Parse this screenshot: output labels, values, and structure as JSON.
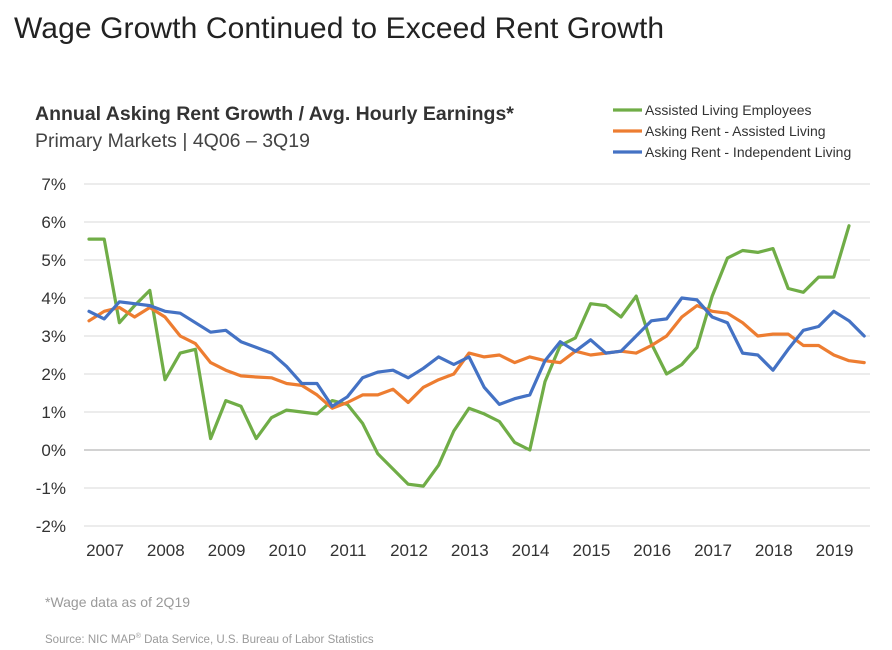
{
  "page": {
    "title": "Wage Growth Continued to Exceed Rent Growth",
    "footnote": "*Wage data as of 2Q19",
    "source_prefix": "Source: NIC MAP",
    "source_sup": "®",
    "source_suffix": " Data Service, U.S. Bureau of Labor Statistics"
  },
  "chart_data": {
    "type": "line",
    "title": "Annual Asking Rent Growth / Avg. Hourly Earnings*",
    "subtitle": "Primary Markets | 4Q06 – 3Q19",
    "xlabel": "",
    "ylabel": "",
    "ylim": [
      -2,
      7
    ],
    "yticks": [
      "-2%",
      "-1%",
      "0%",
      "1%",
      "2%",
      "3%",
      "4%",
      "5%",
      "6%",
      "7%"
    ],
    "ytick_values": [
      -2,
      -1,
      0,
      1,
      2,
      3,
      4,
      5,
      6,
      7
    ],
    "xticks": [
      "2007",
      "2008",
      "2009",
      "2010",
      "2011",
      "2012",
      "2013",
      "2014",
      "2015",
      "2016",
      "2017",
      "2018",
      "2019"
    ],
    "grid": "horizontal",
    "legend_position": "top-right",
    "x": [
      "4Q06",
      "1Q07",
      "2Q07",
      "3Q07",
      "4Q07",
      "1Q08",
      "2Q08",
      "3Q08",
      "4Q08",
      "1Q09",
      "2Q09",
      "3Q09",
      "4Q09",
      "1Q10",
      "2Q10",
      "3Q10",
      "4Q10",
      "1Q11",
      "2Q11",
      "3Q11",
      "4Q11",
      "1Q12",
      "2Q12",
      "3Q12",
      "4Q12",
      "1Q13",
      "2Q13",
      "3Q13",
      "4Q13",
      "1Q14",
      "2Q14",
      "3Q14",
      "4Q14",
      "1Q15",
      "2Q15",
      "3Q15",
      "4Q15",
      "1Q16",
      "2Q16",
      "3Q16",
      "4Q16",
      "1Q17",
      "2Q17",
      "3Q17",
      "4Q17",
      "1Q18",
      "2Q18",
      "3Q18",
      "4Q18",
      "1Q19",
      "2Q19",
      "3Q19"
    ],
    "series": [
      {
        "name": "Assisted Living Employees",
        "color": "#70AD47",
        "values": [
          5.55,
          5.55,
          3.35,
          3.8,
          4.2,
          1.85,
          2.55,
          2.65,
          0.3,
          1.3,
          1.15,
          0.3,
          0.85,
          1.05,
          1.0,
          0.95,
          1.3,
          1.2,
          0.7,
          -0.1,
          -0.5,
          -0.9,
          -0.95,
          -0.4,
          0.5,
          1.1,
          0.95,
          0.75,
          0.2,
          0.0,
          1.8,
          2.75,
          2.95,
          3.85,
          3.8,
          3.5,
          4.05,
          2.8,
          2.0,
          2.25,
          2.7,
          4.05,
          5.05,
          5.25,
          5.2,
          5.3,
          4.25,
          4.15,
          4.55,
          4.55,
          5.9,
          null
        ]
      },
      {
        "name": "Asking Rent - Assisted Living",
        "color": "#ED7D31",
        "values": [
          3.4,
          3.65,
          3.75,
          3.5,
          3.75,
          3.5,
          3.0,
          2.8,
          2.3,
          2.1,
          1.95,
          1.92,
          1.9,
          1.75,
          1.7,
          1.45,
          1.1,
          1.25,
          1.45,
          1.45,
          1.6,
          1.25,
          1.65,
          1.85,
          2.0,
          2.55,
          2.45,
          2.5,
          2.3,
          2.45,
          2.35,
          2.3,
          2.6,
          2.5,
          2.55,
          2.6,
          2.55,
          2.75,
          3.0,
          3.5,
          3.8,
          3.65,
          3.6,
          3.35,
          3.0,
          3.05,
          3.05,
          2.75,
          2.75,
          2.5,
          2.35,
          2.3
        ]
      },
      {
        "name": "Asking Rent - Independent Living",
        "color": "#4472C4",
        "values": [
          3.65,
          3.45,
          3.9,
          3.85,
          3.8,
          3.65,
          3.6,
          3.35,
          3.1,
          3.15,
          2.85,
          2.7,
          2.55,
          2.2,
          1.75,
          1.75,
          1.15,
          1.4,
          1.9,
          2.05,
          2.1,
          1.9,
          2.15,
          2.45,
          2.25,
          2.45,
          1.65,
          1.2,
          1.35,
          1.45,
          2.35,
          2.85,
          2.6,
          2.9,
          2.55,
          2.6,
          3.0,
          3.4,
          3.45,
          4.0,
          3.95,
          3.5,
          3.35,
          2.55,
          2.5,
          2.1,
          2.65,
          3.15,
          3.25,
          3.65,
          3.4,
          3.0
        ]
      }
    ]
  }
}
